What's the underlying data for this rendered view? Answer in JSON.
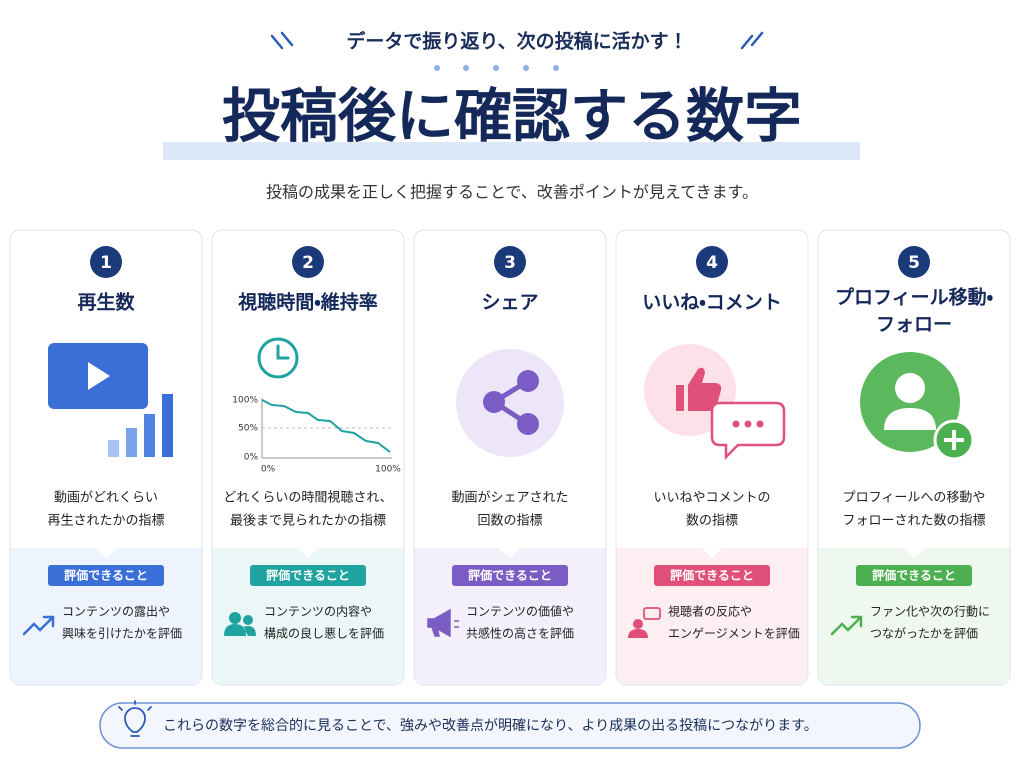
{
  "header": {
    "tagline": "データで振り返り、次の投稿に活かす！",
    "title": "投稿後に確認する数字",
    "subtitle": "投稿の成果を正しく把握することで、改善ポイントが見えてきます。"
  },
  "cards": [
    {
      "number": "1",
      "title": [
        "再生数"
      ],
      "description": [
        "動画がどれくらい",
        "再生されたかの指標"
      ],
      "badge": "評価できること",
      "evaluation": [
        "コンテンツの露出や",
        "興味を引けたかを評価"
      ]
    },
    {
      "number": "2",
      "title": [
        "視聴時間・維持率"
      ],
      "chart": {
        "y_labels": [
          "100%",
          "50%",
          "0%"
        ],
        "x_labels": [
          "0%",
          "100%"
        ]
      },
      "description": [
        "どれくらいの時間視聴され、",
        "最後まで見られたかの指標"
      ],
      "badge": "評価できること",
      "evaluation": [
        "コンテンツの内容や",
        "構成の良し悪しを評価"
      ]
    },
    {
      "number": "3",
      "title": [
        "シェア"
      ],
      "description": [
        "動画がシェアされた",
        "回数の指標"
      ],
      "badge": "評価できること",
      "evaluation": [
        "コンテンツの価値や",
        "共感性の高さを評価"
      ]
    },
    {
      "number": "4",
      "title": [
        "いいね・コメント"
      ],
      "description": [
        "いいねやコメントの",
        "数の指標"
      ],
      "badge": "評価できること",
      "evaluation": [
        "視聴者の反応や",
        "エンゲージメントを評価"
      ]
    },
    {
      "number": "5",
      "title": [
        "プロフィール移動・",
        "フォロー"
      ],
      "description": [
        "プロフィールへの移動や",
        "フォローされた数の指標"
      ],
      "badge": "評価できること",
      "evaluation": [
        "ファン化や次の行動に",
        "つながったかを評価"
      ]
    }
  ],
  "footer": {
    "text": "これらの数字を総合的に見ることで、強みや改善点が明確になり、より成果の出る投稿につながります。"
  }
}
